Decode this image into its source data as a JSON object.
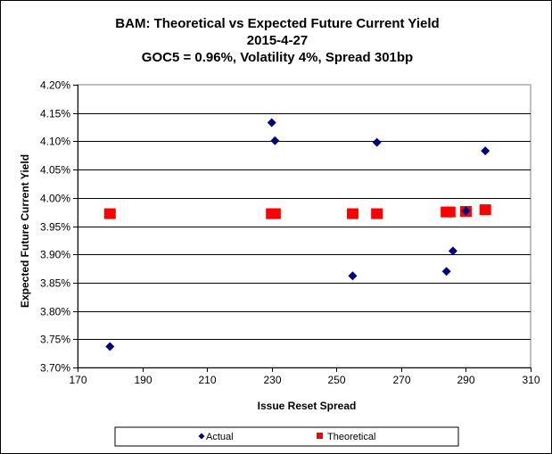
{
  "chart_data": {
    "type": "scatter",
    "title_lines": [
      "BAM: Theoretical vs Expected Future Current Yield",
      "2015-4-27",
      "GOC5 = 0.96%, Volatility 4%, Spread 301bp"
    ],
    "xlabel": "Issue Reset Spread",
    "ylabel": "Expected Future Current Yield",
    "xlim": [
      170,
      310
    ],
    "ylim": [
      3.7,
      4.2
    ],
    "x_ticks": [
      170,
      190,
      210,
      230,
      250,
      270,
      290,
      310
    ],
    "y_ticks": [
      3.7,
      3.75,
      3.8,
      3.85,
      3.9,
      3.95,
      4.0,
      4.05,
      4.1,
      4.15,
      4.2
    ],
    "x_tick_labels": [
      "170",
      "190",
      "210",
      "230",
      "250",
      "270",
      "290",
      "310"
    ],
    "y_tick_labels": [
      "3.70%",
      "3.75%",
      "3.80%",
      "3.85%",
      "3.90%",
      "3.95%",
      "4.00%",
      "4.05%",
      "4.10%",
      "4.15%",
      "4.20%"
    ],
    "grid": "horizontal",
    "legend_position": "bottom",
    "series": [
      {
        "name": "Actual",
        "marker": "diamond",
        "color": "#000080",
        "points": [
          {
            "x": 180,
            "y": 3.737
          },
          {
            "x": 230,
            "y": 4.133
          },
          {
            "x": 231,
            "y": 4.101
          },
          {
            "x": 255,
            "y": 3.862
          },
          {
            "x": 262.5,
            "y": 4.098
          },
          {
            "x": 284,
            "y": 3.87
          },
          {
            "x": 286,
            "y": 3.906
          },
          {
            "x": 290,
            "y": 3.977
          },
          {
            "x": 296,
            "y": 4.083
          }
        ]
      },
      {
        "name": "Theoretical",
        "marker": "square",
        "color": "#ff0000",
        "points": [
          {
            "x": 180,
            "y": 3.972
          },
          {
            "x": 230,
            "y": 3.972
          },
          {
            "x": 231,
            "y": 3.972
          },
          {
            "x": 255,
            "y": 3.972
          },
          {
            "x": 262.5,
            "y": 3.972
          },
          {
            "x": 284,
            "y": 3.975
          },
          {
            "x": 285,
            "y": 3.975
          },
          {
            "x": 290,
            "y": 3.976
          },
          {
            "x": 296,
            "y": 3.979
          }
        ]
      }
    ]
  }
}
